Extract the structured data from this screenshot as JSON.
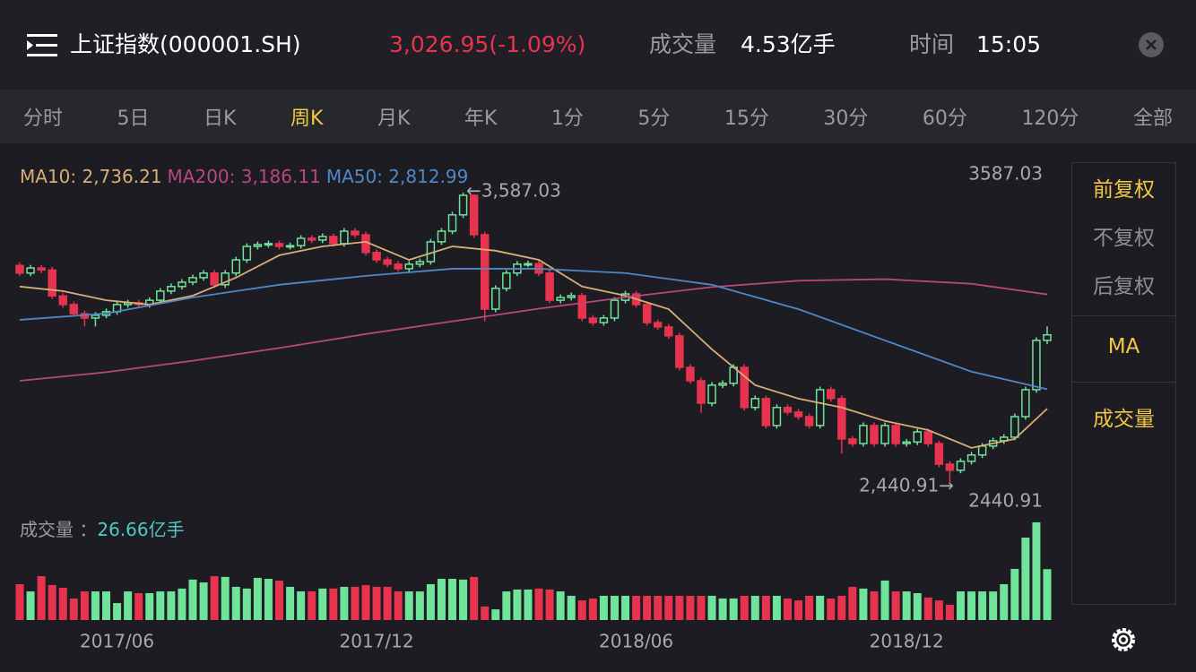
{
  "header": {
    "title": "上证指数(000001.SH)",
    "price": "3,026.95(-1.09%)",
    "volume_label": "成交量",
    "volume_value": "4.53亿手",
    "time_label": "时间",
    "time_value": "15:05"
  },
  "tabs": {
    "items": [
      "分时",
      "5日",
      "日K",
      "周K",
      "月K",
      "年K",
      "1分",
      "5分",
      "15分",
      "30分",
      "60分",
      "120分",
      "全部"
    ],
    "active": 3
  },
  "side_panel": {
    "items": [
      {
        "label": "前复权",
        "highlighted": true
      },
      {
        "label": "不复权",
        "highlighted": false
      },
      {
        "label": "后复权",
        "highlighted": false
      },
      {
        "label": "MA",
        "highlighted": true
      },
      {
        "label": "成交量",
        "highlighted": true
      }
    ]
  },
  "chart_data": {
    "type": "candlestick",
    "categories": [
      null,
      null,
      null,
      null,
      null,
      null,
      null,
      null,
      null,
      "2017/06",
      null,
      null,
      null,
      null,
      null,
      null,
      null,
      null,
      null,
      null,
      null,
      null,
      null,
      null,
      null,
      null,
      null,
      null,
      null,
      null,
      null,
      null,
      null,
      "2017/12",
      null,
      null,
      null,
      null,
      null,
      null,
      null,
      null,
      null,
      null,
      null,
      null,
      null,
      null,
      null,
      null,
      null,
      null,
      null,
      null,
      null,
      null,
      null,
      "2018/06",
      null,
      null,
      null,
      null,
      null,
      null,
      null,
      null,
      null,
      null,
      null,
      null,
      null,
      null,
      null,
      null,
      null,
      null,
      null,
      null,
      null,
      null,
      null,
      null,
      "2018/12",
      null,
      null,
      null,
      null,
      null,
      null,
      null,
      null,
      null,
      null,
      null,
      null,
      null
    ],
    "open": [
      3300,
      3270,
      3290,
      3282,
      3180,
      3146,
      3110,
      3093,
      3104,
      3118,
      3146,
      3153,
      3146,
      3163,
      3199,
      3217,
      3234,
      3252,
      3270,
      3224,
      3270,
      3322,
      3375,
      3382,
      3386,
      3375,
      3378,
      3407,
      3400,
      3414,
      3386,
      3435,
      3421,
      3351,
      3322,
      3305,
      3287,
      3305,
      3315,
      3393,
      3435,
      3499,
      3576,
      3421,
      3128,
      3210,
      3270,
      3305,
      3307,
      3270,
      3163,
      3174,
      3181,
      3093,
      3075,
      3093,
      3163,
      3188,
      3146,
      3075,
      3058,
      3023,
      2899,
      2846,
      2758,
      2829,
      2836,
      2899,
      2741,
      2776,
      2670,
      2741,
      2723,
      2705,
      2670,
      2811,
      2776,
      2617,
      2599,
      2670,
      2599,
      2670,
      2599,
      2605,
      2645,
      2599,
      2518,
      2494,
      2529,
      2554,
      2589,
      2610,
      2624,
      2705,
      2811,
      3005
    ],
    "close": [
      3270,
      3290,
      3282,
      3180,
      3146,
      3110,
      3093,
      3104,
      3118,
      3146,
      3153,
      3146,
      3163,
      3199,
      3217,
      3234,
      3252,
      3270,
      3224,
      3270,
      3322,
      3375,
      3382,
      3386,
      3375,
      3378,
      3407,
      3400,
      3414,
      3386,
      3435,
      3421,
      3351,
      3322,
      3305,
      3287,
      3305,
      3315,
      3393,
      3435,
      3499,
      3576,
      3421,
      3128,
      3210,
      3270,
      3305,
      3307,
      3270,
      3163,
      3174,
      3181,
      3093,
      3075,
      3093,
      3163,
      3188,
      3146,
      3075,
      3058,
      3023,
      2899,
      2846,
      2758,
      2829,
      2836,
      2899,
      2741,
      2776,
      2670,
      2741,
      2723,
      2705,
      2670,
      2811,
      2776,
      2617,
      2599,
      2670,
      2599,
      2670,
      2599,
      2605,
      2645,
      2599,
      2518,
      2494,
      2529,
      2554,
      2589,
      2610,
      2624,
      2705,
      2811,
      3005,
      3026.95
    ],
    "high": [
      3312,
      3302,
      3302,
      3294,
      3192,
      3158,
      3122,
      3116,
      3130,
      3158,
      3165,
      3165,
      3175,
      3211,
      3229,
      3246,
      3264,
      3282,
      3282,
      3282,
      3334,
      3387,
      3394,
      3398,
      3398,
      3390,
      3419,
      3419,
      3426,
      3426,
      3447,
      3447,
      3433,
      3363,
      3334,
      3317,
      3317,
      3327,
      3405,
      3447,
      3511,
      3587.03,
      3580,
      3433,
      3222,
      3282,
      3317,
      3319,
      3319,
      3282,
      3186,
      3193,
      3193,
      3105,
      3105,
      3175,
      3200,
      3200,
      3158,
      3087,
      3070,
      3035,
      2911,
      2858,
      2841,
      2848,
      2911,
      2911,
      2788,
      2788,
      2753,
      2753,
      2735,
      2717,
      2823,
      2823,
      2788,
      2629,
      2682,
      2682,
      2682,
      2682,
      2617,
      2657,
      2657,
      2611,
      2530,
      2541,
      2566,
      2601,
      2622,
      2636,
      2717,
      2823,
      3017,
      3060
    ],
    "low": [
      3258,
      3258,
      3270,
      3168,
      3134,
      3098,
      3060,
      3060,
      3092,
      3106,
      3134,
      3134,
      3134,
      3151,
      3187,
      3205,
      3222,
      3240,
      3212,
      3212,
      3258,
      3310,
      3363,
      3370,
      3363,
      3363,
      3366,
      3388,
      3388,
      3374,
      3374,
      3409,
      3339,
      3310,
      3293,
      3275,
      3275,
      3293,
      3303,
      3381,
      3423,
      3487,
      3409,
      3080,
      3116,
      3198,
      3258,
      3293,
      3258,
      3151,
      3151,
      3162,
      3081,
      3063,
      3063,
      3081,
      3151,
      3134,
      3063,
      3046,
      3011,
      2887,
      2834,
      2720,
      2746,
      2817,
      2824,
      2729,
      2729,
      2658,
      2658,
      2711,
      2693,
      2658,
      2658,
      2764,
      2560,
      2587,
      2587,
      2587,
      2587,
      2587,
      2587,
      2593,
      2587,
      2506,
      2440.91,
      2482,
      2517,
      2542,
      2577,
      2598,
      2612,
      2693,
      2799,
      2990
    ],
    "volume": [
      18.8,
      15,
      23,
      18.3,
      16.9,
      11.3,
      15,
      15,
      15,
      8.9,
      15,
      14.1,
      14.1,
      15,
      15,
      16.5,
      21.2,
      19.7,
      23,
      22.6,
      17.4,
      16.5,
      22.1,
      21.6,
      20.7,
      17.4,
      15,
      15,
      16.5,
      16.5,
      17.4,
      17.4,
      18.3,
      17.4,
      17.4,
      15,
      15,
      15,
      18.8,
      21.6,
      21.6,
      21.2,
      22.6,
      7.1,
      5.6,
      15,
      16,
      16,
      16.5,
      16,
      15,
      12.7,
      10.3,
      11.3,
      12.7,
      12.7,
      12.7,
      12.7,
      12.7,
      12.7,
      12.7,
      12.7,
      12.7,
      12.7,
      12.7,
      11.3,
      11.3,
      12.7,
      12.7,
      12.7,
      12.7,
      11.3,
      10.3,
      12.7,
      12.7,
      11.3,
      12.7,
      17.4,
      16.5,
      15,
      20.7,
      15,
      15,
      14.1,
      11.8,
      10.3,
      8,
      15,
      15,
      15,
      15,
      18.8,
      26.8,
      43.2,
      51.2,
      26.66
    ],
    "up_color": "#6fe39a",
    "down_color": "#e8334f",
    "ylim": [
      2317,
      3710
    ],
    "volume_ylim": [
      0,
      52.6
    ],
    "high_value": 3587.03,
    "low_value": 2440.91,
    "high_label": "←3,587.03",
    "low_label": "2,440.91→",
    "volume_title": "成交量 ：",
    "volume_value_label": "26.66亿手",
    "series": [
      {
        "name": "MA10",
        "legend": "MA10: 2,736.21",
        "color": "#d8ae78",
        "x": [
          0,
          4,
          8,
          12,
          16,
          20,
          24,
          28,
          32,
          36,
          40,
          44,
          48,
          52,
          56,
          60,
          64,
          68,
          72,
          76,
          80,
          84,
          88,
          92,
          95
        ],
        "values": [
          3217,
          3199,
          3163,
          3146,
          3181,
          3252,
          3340,
          3375,
          3393,
          3322,
          3375,
          3358,
          3322,
          3217,
          3181,
          3128,
          2970,
          2829,
          2776,
          2741,
          2688,
          2652,
          2582,
          2617,
          2736.21
        ]
      },
      {
        "name": "MA200",
        "legend": "MA200: 3,186.11",
        "color": "#b8477f",
        "x": [
          0,
          8,
          16,
          24,
          32,
          40,
          48,
          56,
          64,
          72,
          80,
          88,
          95
        ],
        "values": [
          2846,
          2880,
          2925,
          2975,
          3030,
          3080,
          3130,
          3175,
          3215,
          3240,
          3246,
          3228,
          3186.11
        ]
      },
      {
        "name": "MA50",
        "legend": "MA50: 2,812.99",
        "color": "#4f88c4",
        "x": [
          0,
          8,
          16,
          24,
          32,
          40,
          48,
          56,
          64,
          72,
          80,
          88,
          95
        ],
        "values": [
          3086,
          3111,
          3174,
          3224,
          3259,
          3287,
          3287,
          3270,
          3224,
          3128,
          3005,
          2882,
          2812.99
        ]
      }
    ]
  }
}
